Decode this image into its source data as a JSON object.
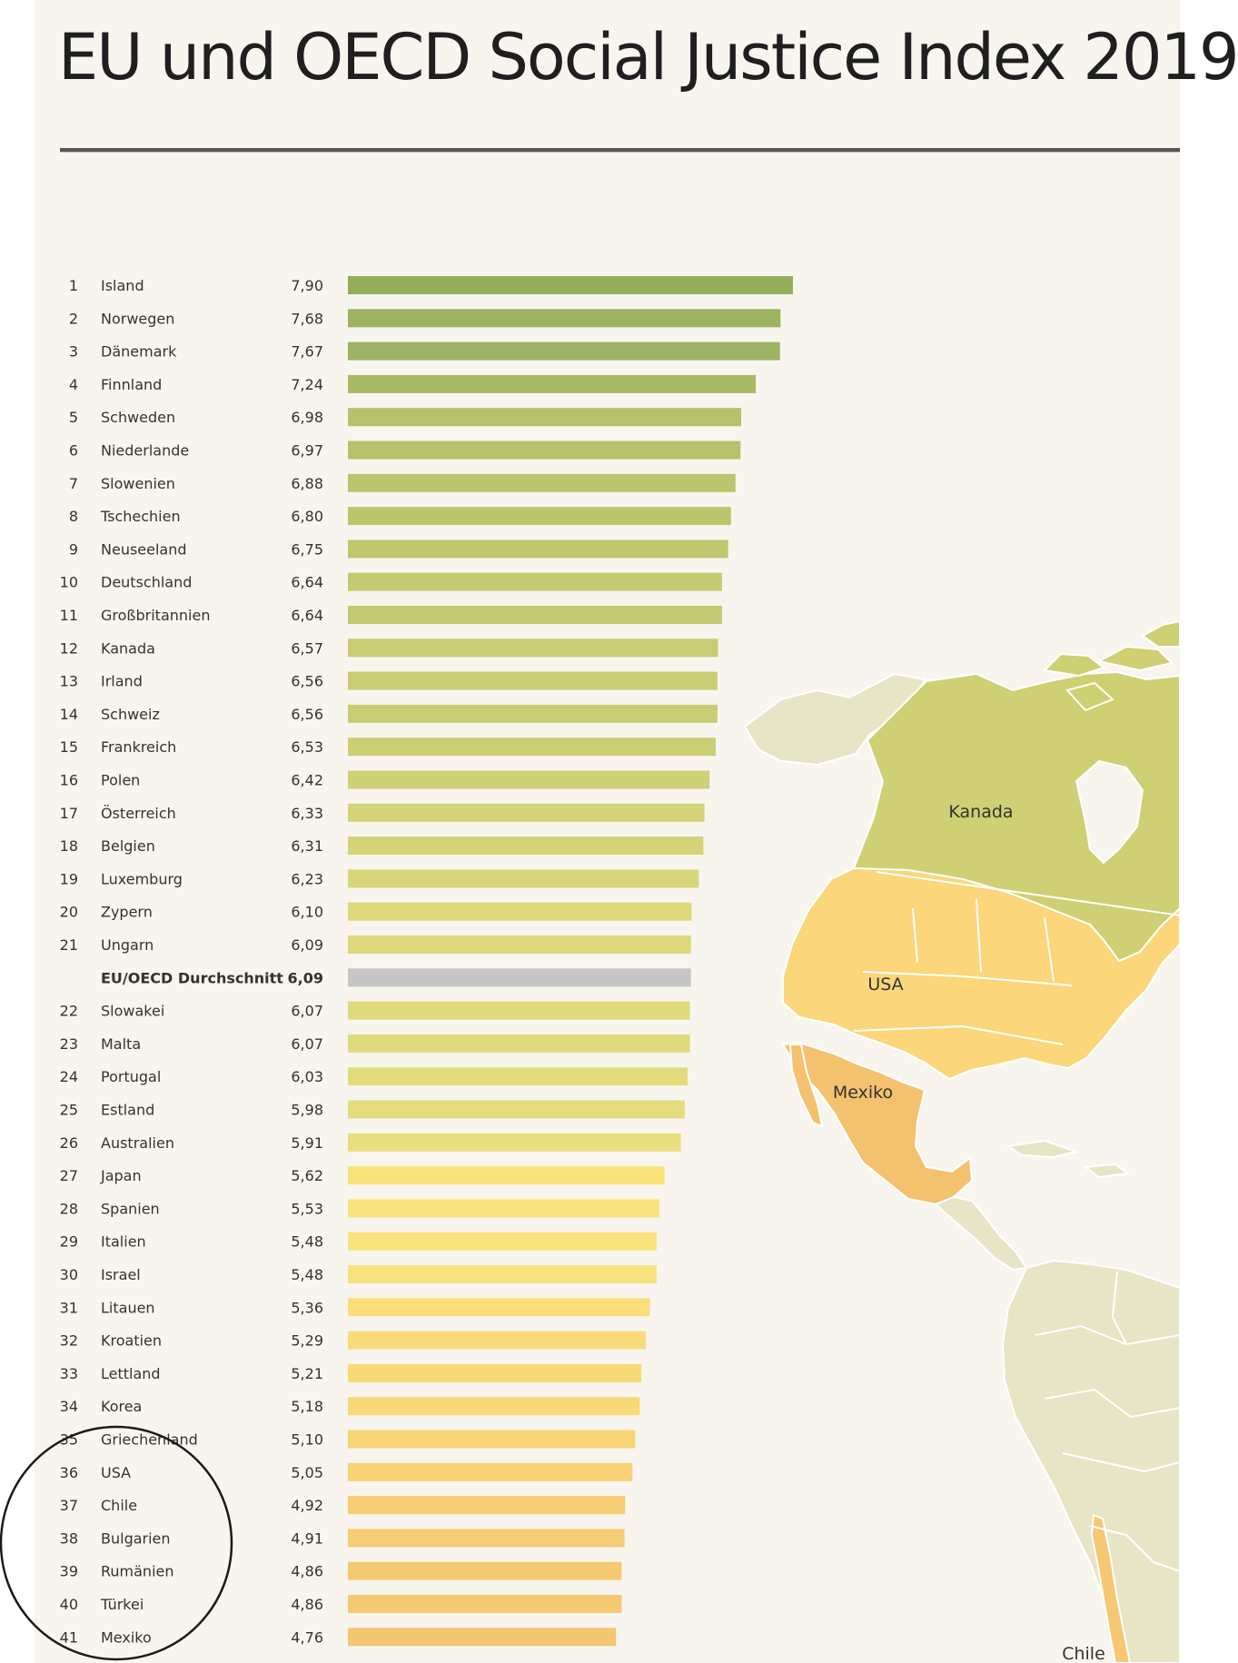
{
  "title": "EU und OECD Social Justice Index 2019",
  "map": {
    "labels": {
      "kanada": "Kanada",
      "usa": "USA",
      "mexiko": "Mexiko",
      "chile": "Chile"
    },
    "colors": {
      "kanada": "#cfcf73",
      "usa": "#fbd67a",
      "mexiko": "#f4c16f",
      "chile": "#f5c874",
      "land_other": "#e8e4c6",
      "water": "#f8f5ee"
    }
  },
  "chart_data": {
    "type": "bar",
    "orientation": "horizontal",
    "title": "EU und OECD Social Justice Index 2019",
    "rows": [
      {
        "rank": "1",
        "country": "Island",
        "value": 7.9,
        "label": "7,90",
        "color": "#94ae5c"
      },
      {
        "rank": "2",
        "country": "Norwegen",
        "value": 7.68,
        "label": "7,68",
        "color": "#9cb362"
      },
      {
        "rank": "3",
        "country": "Dänemark",
        "value": 7.67,
        "label": "7,67",
        "color": "#9cb362"
      },
      {
        "rank": "4",
        "country": "Finnland",
        "value": 7.24,
        "label": "7,24",
        "color": "#a9ba66"
      },
      {
        "rank": "5",
        "country": "Schweden",
        "value": 6.98,
        "label": "6,98",
        "color": "#b6c16b"
      },
      {
        "rank": "6",
        "country": "Niederlande",
        "value": 6.97,
        "label": "6,97",
        "color": "#b6c16b"
      },
      {
        "rank": "7",
        "country": "Slowenien",
        "value": 6.88,
        "label": "6,88",
        "color": "#bcc46e"
      },
      {
        "rank": "8",
        "country": "Tschechien",
        "value": 6.8,
        "label": "6,80",
        "color": "#bcc46e"
      },
      {
        "rank": "9",
        "country": "Neuseeland",
        "value": 6.75,
        "label": "6,75",
        "color": "#c1c770"
      },
      {
        "rank": "10",
        "country": "Deutschland",
        "value": 6.64,
        "label": "6,64",
        "color": "#c5ca72"
      },
      {
        "rank": "11",
        "country": "Großbritannien",
        "value": 6.64,
        "label": "6,64",
        "color": "#c5ca72"
      },
      {
        "rank": "12",
        "country": "Kanada",
        "value": 6.57,
        "label": "6,57",
        "color": "#c9cc74"
      },
      {
        "rank": "13",
        "country": "Irland",
        "value": 6.56,
        "label": "6,56",
        "color": "#c9cc74"
      },
      {
        "rank": "14",
        "country": "Schweiz",
        "value": 6.56,
        "label": "6,56",
        "color": "#c9cc74"
      },
      {
        "rank": "15",
        "country": "Frankreich",
        "value": 6.53,
        "label": "6,53",
        "color": "#ccce76"
      },
      {
        "rank": "16",
        "country": "Polen",
        "value": 6.42,
        "label": "6,42",
        "color": "#d0d077"
      },
      {
        "rank": "17",
        "country": "Österreich",
        "value": 6.33,
        "label": "6,33",
        "color": "#d4d378"
      },
      {
        "rank": "18",
        "country": "Belgien",
        "value": 6.31,
        "label": "6,31",
        "color": "#d4d378"
      },
      {
        "rank": "19",
        "country": "Luxemburg",
        "value": 6.23,
        "label": "6,23",
        "color": "#d8d67a"
      },
      {
        "rank": "20",
        "country": "Zypern",
        "value": 6.1,
        "label": "6,10",
        "color": "#dcd87b"
      },
      {
        "rank": "21",
        "country": "Ungarn",
        "value": 6.09,
        "label": "6,09",
        "color": "#dcd87b"
      },
      {
        "rank": "",
        "country": "EU/OECD Durchschnitt",
        "value": 6.09,
        "label": "6,09",
        "color": "#c6c6c6",
        "average": true
      },
      {
        "rank": "22",
        "country": "Slowakei",
        "value": 6.07,
        "label": "6,07",
        "color": "#dfda7c"
      },
      {
        "rank": "23",
        "country": "Malta",
        "value": 6.07,
        "label": "6,07",
        "color": "#dfda7c"
      },
      {
        "rank": "24",
        "country": "Portugal",
        "value": 6.03,
        "label": "6,03",
        "color": "#e2db7c"
      },
      {
        "rank": "25",
        "country": "Estland",
        "value": 5.98,
        "label": "5,98",
        "color": "#e5dc7d"
      },
      {
        "rank": "26",
        "country": "Australien",
        "value": 5.91,
        "label": "5,91",
        "color": "#e8de7e"
      },
      {
        "rank": "27",
        "country": "Japan",
        "value": 5.62,
        "label": "5,62",
        "color": "#f7e27c"
      },
      {
        "rank": "28",
        "country": "Spanien",
        "value": 5.53,
        "label": "5,53",
        "color": "#f9e27d"
      },
      {
        "rank": "29",
        "country": "Italien",
        "value": 5.48,
        "label": "5,48",
        "color": "#f9e27d"
      },
      {
        "rank": "30",
        "country": "Israel",
        "value": 5.48,
        "label": "5,48",
        "color": "#f9e27d"
      },
      {
        "rank": "31",
        "country": "Litauen",
        "value": 5.36,
        "label": "5,36",
        "color": "#f9de7b"
      },
      {
        "rank": "32",
        "country": "Kroatien",
        "value": 5.29,
        "label": "5,29",
        "color": "#f9db79"
      },
      {
        "rank": "33",
        "country": "Lettland",
        "value": 5.21,
        "label": "5,21",
        "color": "#f9d877"
      },
      {
        "rank": "34",
        "country": "Korea",
        "value": 5.18,
        "label": "5,18",
        "color": "#f9d877"
      },
      {
        "rank": "35",
        "country": "Griechenland",
        "value": 5.1,
        "label": "5,10",
        "color": "#f8d476"
      },
      {
        "rank": "36",
        "country": "USA",
        "value": 5.05,
        "label": "5,05",
        "color": "#f8d276"
      },
      {
        "rank": "37",
        "country": "Chile",
        "value": 4.92,
        "label": "4,92",
        "color": "#f6cc74"
      },
      {
        "rank": "38",
        "country": "Bulgarien",
        "value": 4.91,
        "label": "4,91",
        "color": "#f6cc74"
      },
      {
        "rank": "39",
        "country": "Rumänien",
        "value": 4.86,
        "label": "4,86",
        "color": "#f5c972"
      },
      {
        "rank": "40",
        "country": "Türkei",
        "value": 4.86,
        "label": "4,86",
        "color": "#f5c972"
      },
      {
        "rank": "41",
        "country": "Mexiko",
        "value": 4.76,
        "label": "4,76",
        "color": "#f4c671"
      }
    ],
    "xlim": [
      0,
      7.9
    ],
    "grid": false,
    "annotation": "hand-drawn circle around ranks 35–41"
  }
}
